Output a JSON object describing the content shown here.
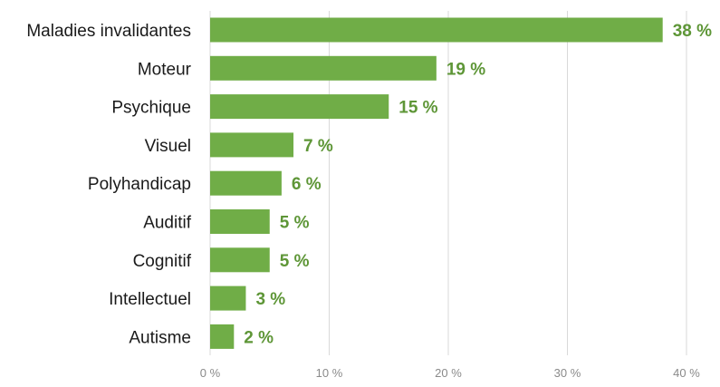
{
  "chart_data": {
    "type": "bar",
    "orientation": "horizontal",
    "title": "",
    "xlabel": "",
    "ylabel": "",
    "categories": [
      "Maladies invalidantes",
      "Moteur",
      "Psychique",
      "Visuel",
      "Polyhandicap",
      "Auditif",
      "Cognitif",
      "Intellectuel",
      "Autisme"
    ],
    "values": [
      38,
      19,
      15,
      7,
      6,
      5,
      5,
      3,
      2
    ],
    "value_labels": [
      "38 %",
      "19 %",
      "15 %",
      "7 %",
      "6 %",
      "5 %",
      "5 %",
      "3 %",
      "2 %"
    ],
    "xlim": [
      0,
      40
    ],
    "x_ticks": [
      0,
      10,
      20,
      30,
      40
    ],
    "x_tick_labels": [
      "0 %",
      "10 %",
      "20 %",
      "30 %",
      "40 %"
    ],
    "grid": "vertical",
    "legend": "none",
    "bar_color": "#70ad47",
    "label_color": "#5e9637"
  }
}
